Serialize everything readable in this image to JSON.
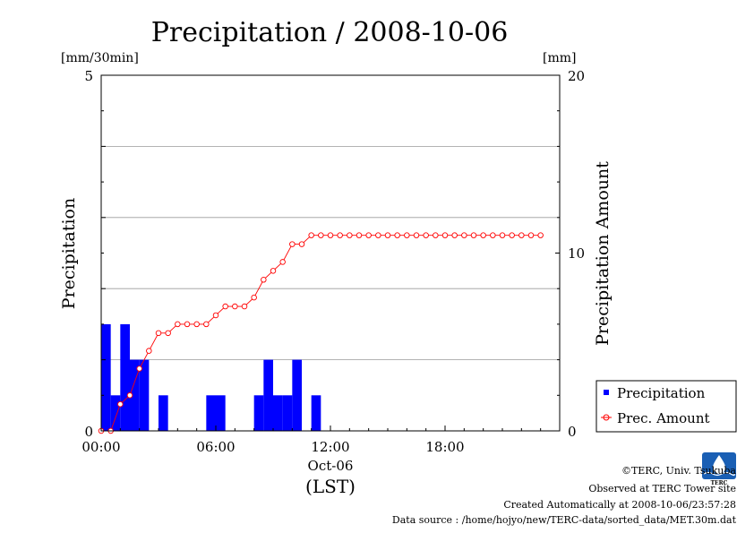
{
  "chart_data": {
    "type": "bar+line",
    "title": "Precipitation / 2008-10-06",
    "left_unit": "[mm/30min]",
    "right_unit": "[mm]",
    "ylabel": "Precipitation",
    "ylabel_right": "Precipitation Amount",
    "ylim": [
      0,
      5
    ],
    "ylim_right": [
      0,
      20
    ],
    "yticks_left": [
      "0",
      "5"
    ],
    "yticks_right": [
      "0",
      "10",
      "20"
    ],
    "xlim_hours": [
      0,
      24
    ],
    "xticks": [
      "00:00",
      "06:00",
      "12:00",
      "18:00"
    ],
    "x_date_label": "Oct-06",
    "xlabel": "(LST)",
    "grid": true,
    "legend_position": "lower-right-outside",
    "series": [
      {
        "name": "Precipitation",
        "kind": "bar",
        "color": "#0000ff",
        "x_hours": [
          0,
          0.5,
          1,
          1.5,
          2,
          2.5,
          3,
          3.5,
          4,
          4.5,
          5,
          5.5,
          6,
          6.5,
          7,
          7.5,
          8,
          8.5,
          9,
          9.5,
          10,
          10.5,
          11,
          11.5,
          12,
          12.5,
          13,
          13.5,
          14,
          14.5,
          15,
          15.5,
          16,
          16.5,
          17,
          17.5,
          18,
          18.5,
          19,
          19.5,
          20,
          20.5,
          21,
          21.5,
          22,
          22.5,
          23
        ],
        "values": [
          1.5,
          0.5,
          1.5,
          1.0,
          1.0,
          0,
          0.5,
          0,
          0,
          0,
          0,
          0.5,
          0.5,
          0,
          0,
          0,
          0.5,
          1.0,
          0.5,
          0.5,
          1.0,
          0,
          0.5,
          0,
          0,
          0,
          0,
          0,
          0,
          0,
          0,
          0,
          0,
          0,
          0,
          0,
          0,
          0,
          0,
          0,
          0,
          0,
          0,
          0,
          0,
          0,
          0
        ]
      },
      {
        "name": "Prec. Amount",
        "kind": "line",
        "color": "#ff0000",
        "x_hours": [
          0,
          0.5,
          1,
          1.5,
          2,
          2.5,
          3,
          3.5,
          4,
          4.5,
          5,
          5.5,
          6,
          6.5,
          7,
          7.5,
          8,
          8.5,
          9,
          9.5,
          10,
          10.5,
          11,
          11.5,
          12,
          12.5,
          13,
          13.5,
          14,
          14.5,
          15,
          15.5,
          16,
          16.5,
          17,
          17.5,
          18,
          18.5,
          19,
          19.5,
          20,
          20.5,
          21,
          21.5,
          22,
          22.5,
          23
        ],
        "values": [
          0,
          0,
          1.5,
          2.0,
          3.5,
          4.5,
          5.5,
          5.5,
          6.0,
          6.0,
          6.0,
          6.0,
          6.5,
          7.0,
          7.0,
          7.0,
          7.5,
          8.5,
          9.0,
          9.5,
          10.5,
          10.5,
          11.0,
          11.0,
          11.0,
          11.0,
          11.0,
          11.0,
          11.0,
          11.0,
          11.0,
          11.0,
          11.0,
          11.0,
          11.0,
          11.0,
          11.0,
          11.0,
          11.0,
          11.0,
          11.0,
          11.0,
          11.0,
          11.0,
          11.0,
          11.0,
          11.0
        ]
      }
    ]
  },
  "logo": {
    "text": "TERC"
  },
  "footer": {
    "copyright": "©TERC, Univ. Tsukuba",
    "site": "Observed at TERC Tower site",
    "created": "Created Automatically at 2008-10-06/23:57:28",
    "source": "Data source : /home/hojyo/new/TERC-data/sorted_data/MET.30m.dat"
  }
}
